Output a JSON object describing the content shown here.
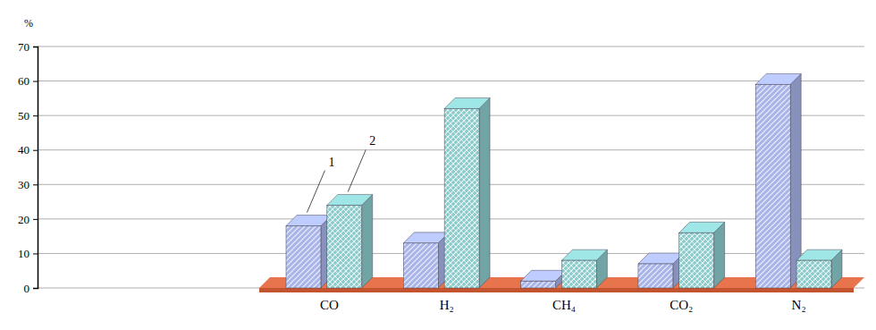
{
  "chart_data": {
    "type": "bar",
    "y_label": "%",
    "categories": [
      "CO",
      "H₂",
      "CH₄",
      "CO₂",
      "N₂"
    ],
    "series": [
      {
        "name": "1",
        "color": "#a9b4e8",
        "values": [
          18,
          13,
          2,
          7,
          59
        ]
      },
      {
        "name": "2",
        "color": "#8ccbcb",
        "values": [
          24,
          52,
          8,
          16,
          8
        ]
      }
    ],
    "ylim": [
      0,
      70
    ],
    "yticks": [
      0,
      10,
      20,
      30,
      40,
      50,
      60,
      70
    ],
    "grid": true
  }
}
